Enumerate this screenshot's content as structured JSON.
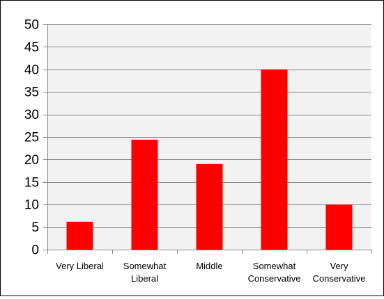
{
  "chart_data": {
    "type": "bar",
    "categories": [
      [
        "Very Liberal"
      ],
      [
        "Somewhat",
        "Liberal"
      ],
      [
        "Middle"
      ],
      [
        "Somewhat",
        "Conservative"
      ],
      [
        "Very",
        "Conservative"
      ]
    ],
    "values": [
      6.2,
      24.4,
      19.0,
      40.0,
      10.0
    ],
    "title": "",
    "xlabel": "",
    "ylabel": "",
    "ylim": [
      0,
      50
    ],
    "yticks": [
      0,
      5,
      10,
      15,
      20,
      25,
      30,
      35,
      40,
      45,
      50
    ],
    "grid": true,
    "legend": "none",
    "colors": {
      "bar": "#ff0000",
      "plot_background": "#f2f2f2",
      "gridline": "#868686",
      "axis": "#868686"
    }
  }
}
